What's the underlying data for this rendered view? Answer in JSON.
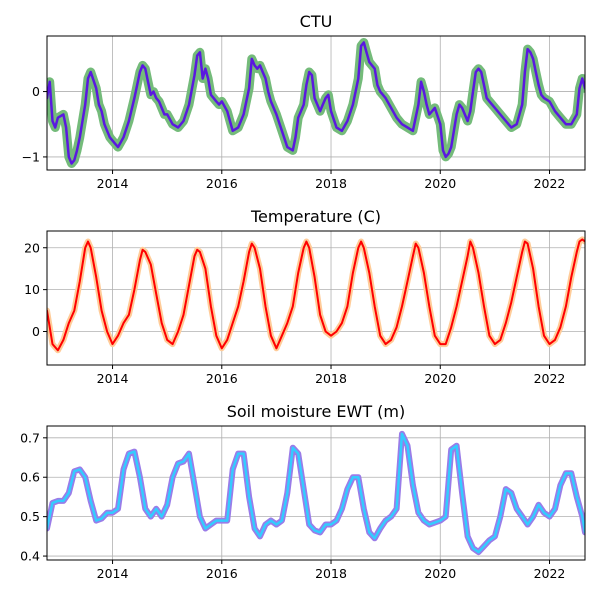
{
  "chart_data": [
    {
      "type": "line",
      "title": "CTU",
      "xlabel": "",
      "ylabel": "",
      "xlim": [
        2012.8,
        2022.65
      ],
      "ylim": [
        -1.2,
        0.85
      ],
      "xticks": [
        2014,
        2016,
        2018,
        2020,
        2022
      ],
      "yticks": [
        -1,
        0
      ],
      "grid": true,
      "line_style": {
        "under": "#74bb7a",
        "over": "#5a18e0",
        "under_width": 9,
        "over_width": 2.5
      },
      "x": [
        2012.8,
        2012.85,
        2012.9,
        2012.95,
        2013.0,
        2013.1,
        2013.15,
        2013.2,
        2013.25,
        2013.3,
        2013.35,
        2013.4,
        2013.5,
        2013.55,
        2013.6,
        2013.7,
        2013.75,
        2013.8,
        2013.85,
        2013.9,
        2013.95,
        2014.0,
        2014.05,
        2014.1,
        2014.2,
        2014.3,
        2014.4,
        2014.5,
        2014.55,
        2014.6,
        2014.65,
        2014.7,
        2014.75,
        2014.8,
        2014.85,
        2014.9,
        2014.95,
        2015.0,
        2015.1,
        2015.2,
        2015.3,
        2015.4,
        2015.5,
        2015.55,
        2015.6,
        2015.65,
        2015.7,
        2015.75,
        2015.8,
        2015.85,
        2015.9,
        2015.95,
        2016.0,
        2016.1,
        2016.2,
        2016.3,
        2016.4,
        2016.5,
        2016.55,
        2016.6,
        2016.65,
        2016.7,
        2016.75,
        2016.8,
        2016.85,
        2016.9,
        2017.0,
        2017.1,
        2017.2,
        2017.3,
        2017.35,
        2017.4,
        2017.5,
        2017.55,
        2017.6,
        2017.65,
        2017.7,
        2017.8,
        2017.85,
        2017.9,
        2017.95,
        2018.0,
        2018.1,
        2018.2,
        2018.3,
        2018.4,
        2018.5,
        2018.55,
        2018.6,
        2018.65,
        2018.7,
        2018.75,
        2018.8,
        2018.85,
        2018.9,
        2019.0,
        2019.1,
        2019.2,
        2019.3,
        2019.4,
        2019.5,
        2019.6,
        2019.65,
        2019.7,
        2019.75,
        2019.8,
        2019.85,
        2019.9,
        2020.0,
        2020.05,
        2020.1,
        2020.15,
        2020.2,
        2020.25,
        2020.3,
        2020.35,
        2020.4,
        2020.5,
        2020.55,
        2020.6,
        2020.65,
        2020.7,
        2020.75,
        2020.8,
        2020.85,
        2020.9,
        2021.0,
        2021.1,
        2021.2,
        2021.3,
        2021.4,
        2021.5,
        2021.55,
        2021.6,
        2021.65,
        2021.7,
        2021.75,
        2021.8,
        2021.85,
        2021.9,
        2022.0,
        2022.1,
        2022.2,
        2022.3,
        2022.4,
        2022.5,
        2022.55,
        2022.6,
        2022.65
      ],
      "y": [
        -0.1,
        0.15,
        -0.45,
        -0.55,
        -0.4,
        -0.35,
        -0.55,
        -1.0,
        -1.1,
        -1.05,
        -0.9,
        -0.7,
        -0.2,
        0.2,
        0.3,
        0.05,
        -0.2,
        -0.3,
        -0.5,
        -0.6,
        -0.7,
        -0.75,
        -0.8,
        -0.85,
        -0.7,
        -0.45,
        -0.1,
        0.3,
        0.4,
        0.35,
        0.15,
        -0.05,
        0.0,
        -0.1,
        -0.15,
        -0.25,
        -0.35,
        -0.35,
        -0.5,
        -0.55,
        -0.45,
        -0.2,
        0.25,
        0.55,
        0.6,
        0.2,
        0.35,
        0.2,
        -0.05,
        -0.1,
        -0.15,
        -0.2,
        -0.15,
        -0.3,
        -0.6,
        -0.55,
        -0.35,
        0.05,
        0.5,
        0.4,
        0.35,
        0.4,
        0.3,
        0.2,
        0.0,
        -0.15,
        -0.35,
        -0.6,
        -0.85,
        -0.9,
        -0.7,
        -0.4,
        -0.2,
        0.1,
        0.3,
        0.25,
        -0.1,
        -0.3,
        -0.2,
        -0.1,
        -0.05,
        -0.3,
        -0.55,
        -0.6,
        -0.45,
        -0.2,
        0.2,
        0.7,
        0.75,
        0.6,
        0.45,
        0.4,
        0.35,
        0.1,
        0.0,
        -0.1,
        -0.25,
        -0.4,
        -0.5,
        -0.55,
        -0.6,
        -0.2,
        0.15,
        0.0,
        -0.2,
        -0.35,
        -0.3,
        -0.25,
        -0.5,
        -0.9,
        -1.0,
        -0.95,
        -0.85,
        -0.6,
        -0.35,
        -0.2,
        -0.25,
        -0.45,
        -0.3,
        0.0,
        0.3,
        0.35,
        0.3,
        0.1,
        -0.1,
        -0.15,
        -0.25,
        -0.35,
        -0.45,
        -0.55,
        -0.5,
        -0.2,
        0.3,
        0.65,
        0.6,
        0.5,
        0.3,
        0.1,
        -0.05,
        -0.1,
        -0.15,
        -0.3,
        -0.4,
        -0.5,
        -0.5,
        -0.35,
        0.05,
        0.2,
        0.05
      ]
    },
    {
      "type": "line",
      "title": "Temperature (C)",
      "xlabel": "",
      "ylabel": "",
      "xlim": [
        2012.8,
        2022.65
      ],
      "ylim": [
        -8,
        24
      ],
      "xticks": [
        2014,
        2016,
        2018,
        2020,
        2022
      ],
      "yticks": [
        0,
        10,
        20
      ],
      "grid": true,
      "line_style": {
        "under": "#ffcc99",
        "over": "#ff0000",
        "under_width": 6,
        "over_width": 2
      },
      "x": [
        2012.8,
        2012.9,
        2013.0,
        2013.1,
        2013.2,
        2013.3,
        2013.4,
        2013.5,
        2013.55,
        2013.6,
        2013.7,
        2013.8,
        2013.9,
        2014.0,
        2014.1,
        2014.2,
        2014.3,
        2014.4,
        2014.5,
        2014.55,
        2014.6,
        2014.7,
        2014.8,
        2014.9,
        2015.0,
        2015.1,
        2015.2,
        2015.3,
        2015.4,
        2015.5,
        2015.55,
        2015.6,
        2015.7,
        2015.8,
        2015.9,
        2016.0,
        2016.1,
        2016.2,
        2016.3,
        2016.4,
        2016.5,
        2016.55,
        2016.6,
        2016.7,
        2016.8,
        2016.9,
        2017.0,
        2017.1,
        2017.2,
        2017.3,
        2017.4,
        2017.5,
        2017.55,
        2017.6,
        2017.7,
        2017.8,
        2017.9,
        2018.0,
        2018.1,
        2018.2,
        2018.3,
        2018.4,
        2018.5,
        2018.55,
        2018.6,
        2018.7,
        2018.8,
        2018.9,
        2019.0,
        2019.1,
        2019.2,
        2019.3,
        2019.4,
        2019.5,
        2019.55,
        2019.6,
        2019.7,
        2019.8,
        2019.9,
        2020.0,
        2020.1,
        2020.2,
        2020.3,
        2020.4,
        2020.5,
        2020.55,
        2020.6,
        2020.7,
        2020.8,
        2020.9,
        2021.0,
        2021.1,
        2021.2,
        2021.3,
        2021.4,
        2021.5,
        2021.55,
        2021.6,
        2021.7,
        2021.8,
        2021.9,
        2022.0,
        2022.1,
        2022.2,
        2022.3,
        2022.4,
        2022.5,
        2022.55,
        2022.6,
        2022.65
      ],
      "y": [
        5,
        -3,
        -4.5,
        -2,
        2,
        5,
        12,
        20,
        21.5,
        20,
        13,
        5,
        0,
        -3,
        -1,
        2,
        4,
        10,
        17,
        19.5,
        19,
        16,
        9,
        2,
        -2,
        -3,
        0,
        4,
        11,
        18,
        19.5,
        19,
        15,
        6,
        -1,
        -4,
        -2,
        2,
        6,
        12,
        19,
        21,
        20,
        15,
        6,
        -1,
        -4,
        -1,
        2,
        6,
        14,
        20,
        21.5,
        20,
        13,
        4,
        0,
        -1,
        0,
        2,
        6,
        14,
        20,
        21.5,
        20,
        14,
        6,
        -1,
        -3,
        -2,
        1,
        6,
        12,
        18,
        21,
        20,
        14,
        6,
        -1,
        -3,
        -3,
        1,
        6,
        12,
        18,
        21.5,
        20,
        14,
        6,
        -1,
        -3,
        -2,
        2,
        7,
        13,
        19,
        21.5,
        21,
        15,
        6,
        -1,
        -3,
        -2,
        1,
        6,
        13,
        19,
        21.5,
        22,
        21.5
      ]
    },
    {
      "type": "line",
      "title": "Soil moisture EWT (m)",
      "xlabel": "",
      "ylabel": "",
      "xlim": [
        2012.8,
        2022.65
      ],
      "ylim": [
        0.39,
        0.73
      ],
      "xticks": [
        2014,
        2016,
        2018,
        2020,
        2022
      ],
      "yticks": [
        0.4,
        0.5,
        0.6,
        0.7
      ],
      "grid": true,
      "line_style": {
        "under": "#9a7ce8",
        "over": "#33ccff",
        "under_width": 6,
        "over_width": 2.5
      },
      "x": [
        2012.8,
        2012.9,
        2013.0,
        2013.1,
        2013.2,
        2013.3,
        2013.4,
        2013.5,
        2013.6,
        2013.7,
        2013.8,
        2013.9,
        2014.0,
        2014.1,
        2014.2,
        2014.3,
        2014.4,
        2014.5,
        2014.6,
        2014.7,
        2014.8,
        2014.9,
        2015.0,
        2015.1,
        2015.2,
        2015.3,
        2015.4,
        2015.5,
        2015.6,
        2015.7,
        2015.8,
        2015.9,
        2016.0,
        2016.1,
        2016.2,
        2016.3,
        2016.4,
        2016.5,
        2016.6,
        2016.7,
        2016.8,
        2016.9,
        2017.0,
        2017.1,
        2017.2,
        2017.3,
        2017.4,
        2017.5,
        2017.6,
        2017.7,
        2017.8,
        2017.9,
        2018.0,
        2018.1,
        2018.2,
        2018.3,
        2018.4,
        2018.5,
        2018.6,
        2018.7,
        2018.8,
        2018.9,
        2019.0,
        2019.1,
        2019.2,
        2019.3,
        2019.4,
        2019.5,
        2019.6,
        2019.7,
        2019.8,
        2019.9,
        2020.0,
        2020.1,
        2020.2,
        2020.3,
        2020.4,
        2020.5,
        2020.6,
        2020.7,
        2020.8,
        2020.9,
        2021.0,
        2021.1,
        2021.2,
        2021.3,
        2021.4,
        2021.5,
        2021.6,
        2021.7,
        2021.8,
        2021.9,
        2022.0,
        2022.1,
        2022.2,
        2022.3,
        2022.4,
        2022.5,
        2022.6,
        2022.65
      ],
      "y": [
        0.47,
        0.535,
        0.54,
        0.54,
        0.56,
        0.615,
        0.62,
        0.6,
        0.54,
        0.49,
        0.495,
        0.51,
        0.51,
        0.52,
        0.62,
        0.66,
        0.665,
        0.6,
        0.52,
        0.5,
        0.52,
        0.5,
        0.53,
        0.6,
        0.635,
        0.64,
        0.66,
        0.58,
        0.5,
        0.47,
        0.48,
        0.49,
        0.49,
        0.49,
        0.62,
        0.66,
        0.66,
        0.55,
        0.47,
        0.45,
        0.48,
        0.49,
        0.48,
        0.49,
        0.56,
        0.675,
        0.66,
        0.57,
        0.48,
        0.465,
        0.46,
        0.48,
        0.48,
        0.49,
        0.52,
        0.57,
        0.6,
        0.6,
        0.52,
        0.46,
        0.445,
        0.47,
        0.49,
        0.5,
        0.52,
        0.71,
        0.68,
        0.58,
        0.51,
        0.49,
        0.48,
        0.485,
        0.49,
        0.5,
        0.67,
        0.68,
        0.56,
        0.45,
        0.42,
        0.41,
        0.425,
        0.44,
        0.45,
        0.5,
        0.57,
        0.56,
        0.52,
        0.5,
        0.48,
        0.5,
        0.53,
        0.51,
        0.5,
        0.52,
        0.58,
        0.61,
        0.61,
        0.55,
        0.5,
        0.46
      ]
    }
  ]
}
